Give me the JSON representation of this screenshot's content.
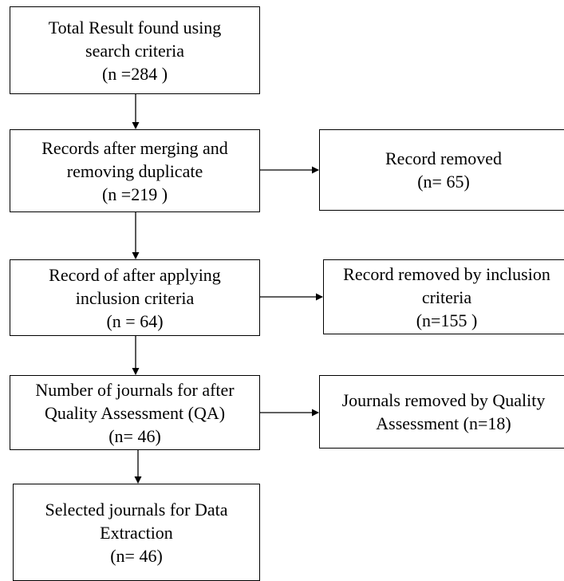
{
  "boxes": {
    "total_results": {
      "lines": [
        "Total Result found using",
        "search criteria",
        "(n =284 )"
      ]
    },
    "after_merging": {
      "lines": [
        "Records after merging and",
        "removing duplicate",
        "(n =219 )"
      ]
    },
    "record_removed": {
      "lines": [
        "Record removed",
        "(n= 65)"
      ]
    },
    "after_inclusion": {
      "lines": [
        "Record of after applying",
        "inclusion criteria",
        "(n = 64)"
      ]
    },
    "removed_by_inclusion": {
      "lines": [
        "Record removed by inclusion",
        "criteria",
        "(n=155 )"
      ]
    },
    "after_qa": {
      "lines": [
        "Number of journals for after",
        "Quality Assessment (QA)",
        "(n= 46)"
      ]
    },
    "removed_by_qa": {
      "lines": [
        "Journals removed by Quality",
        "Assessment (n=18)"
      ]
    },
    "selected": {
      "lines": [
        "Selected journals for Data",
        "Extraction",
        "(n= 46)"
      ]
    }
  }
}
